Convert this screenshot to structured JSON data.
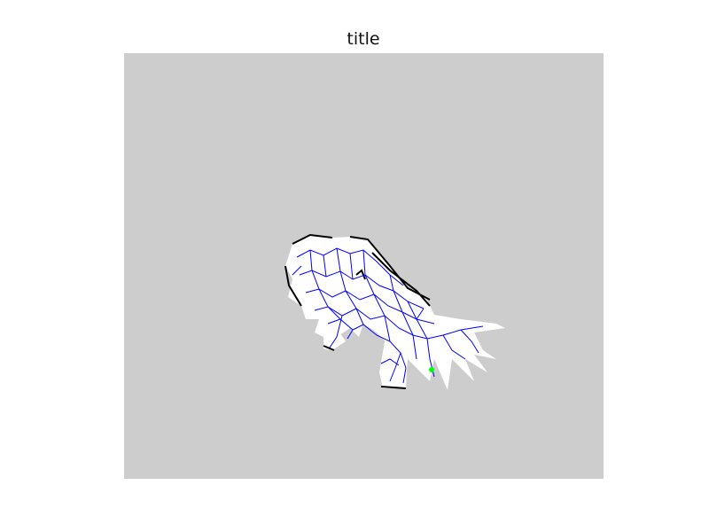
{
  "figure": {
    "title": "title"
  },
  "map": {
    "background_color": "#cdcdcd",
    "free_space_color": "#ffffff",
    "obstacle_color": "#000000",
    "graph_edge_color": "#0000ff",
    "marker_color": "#00ff00"
  }
}
